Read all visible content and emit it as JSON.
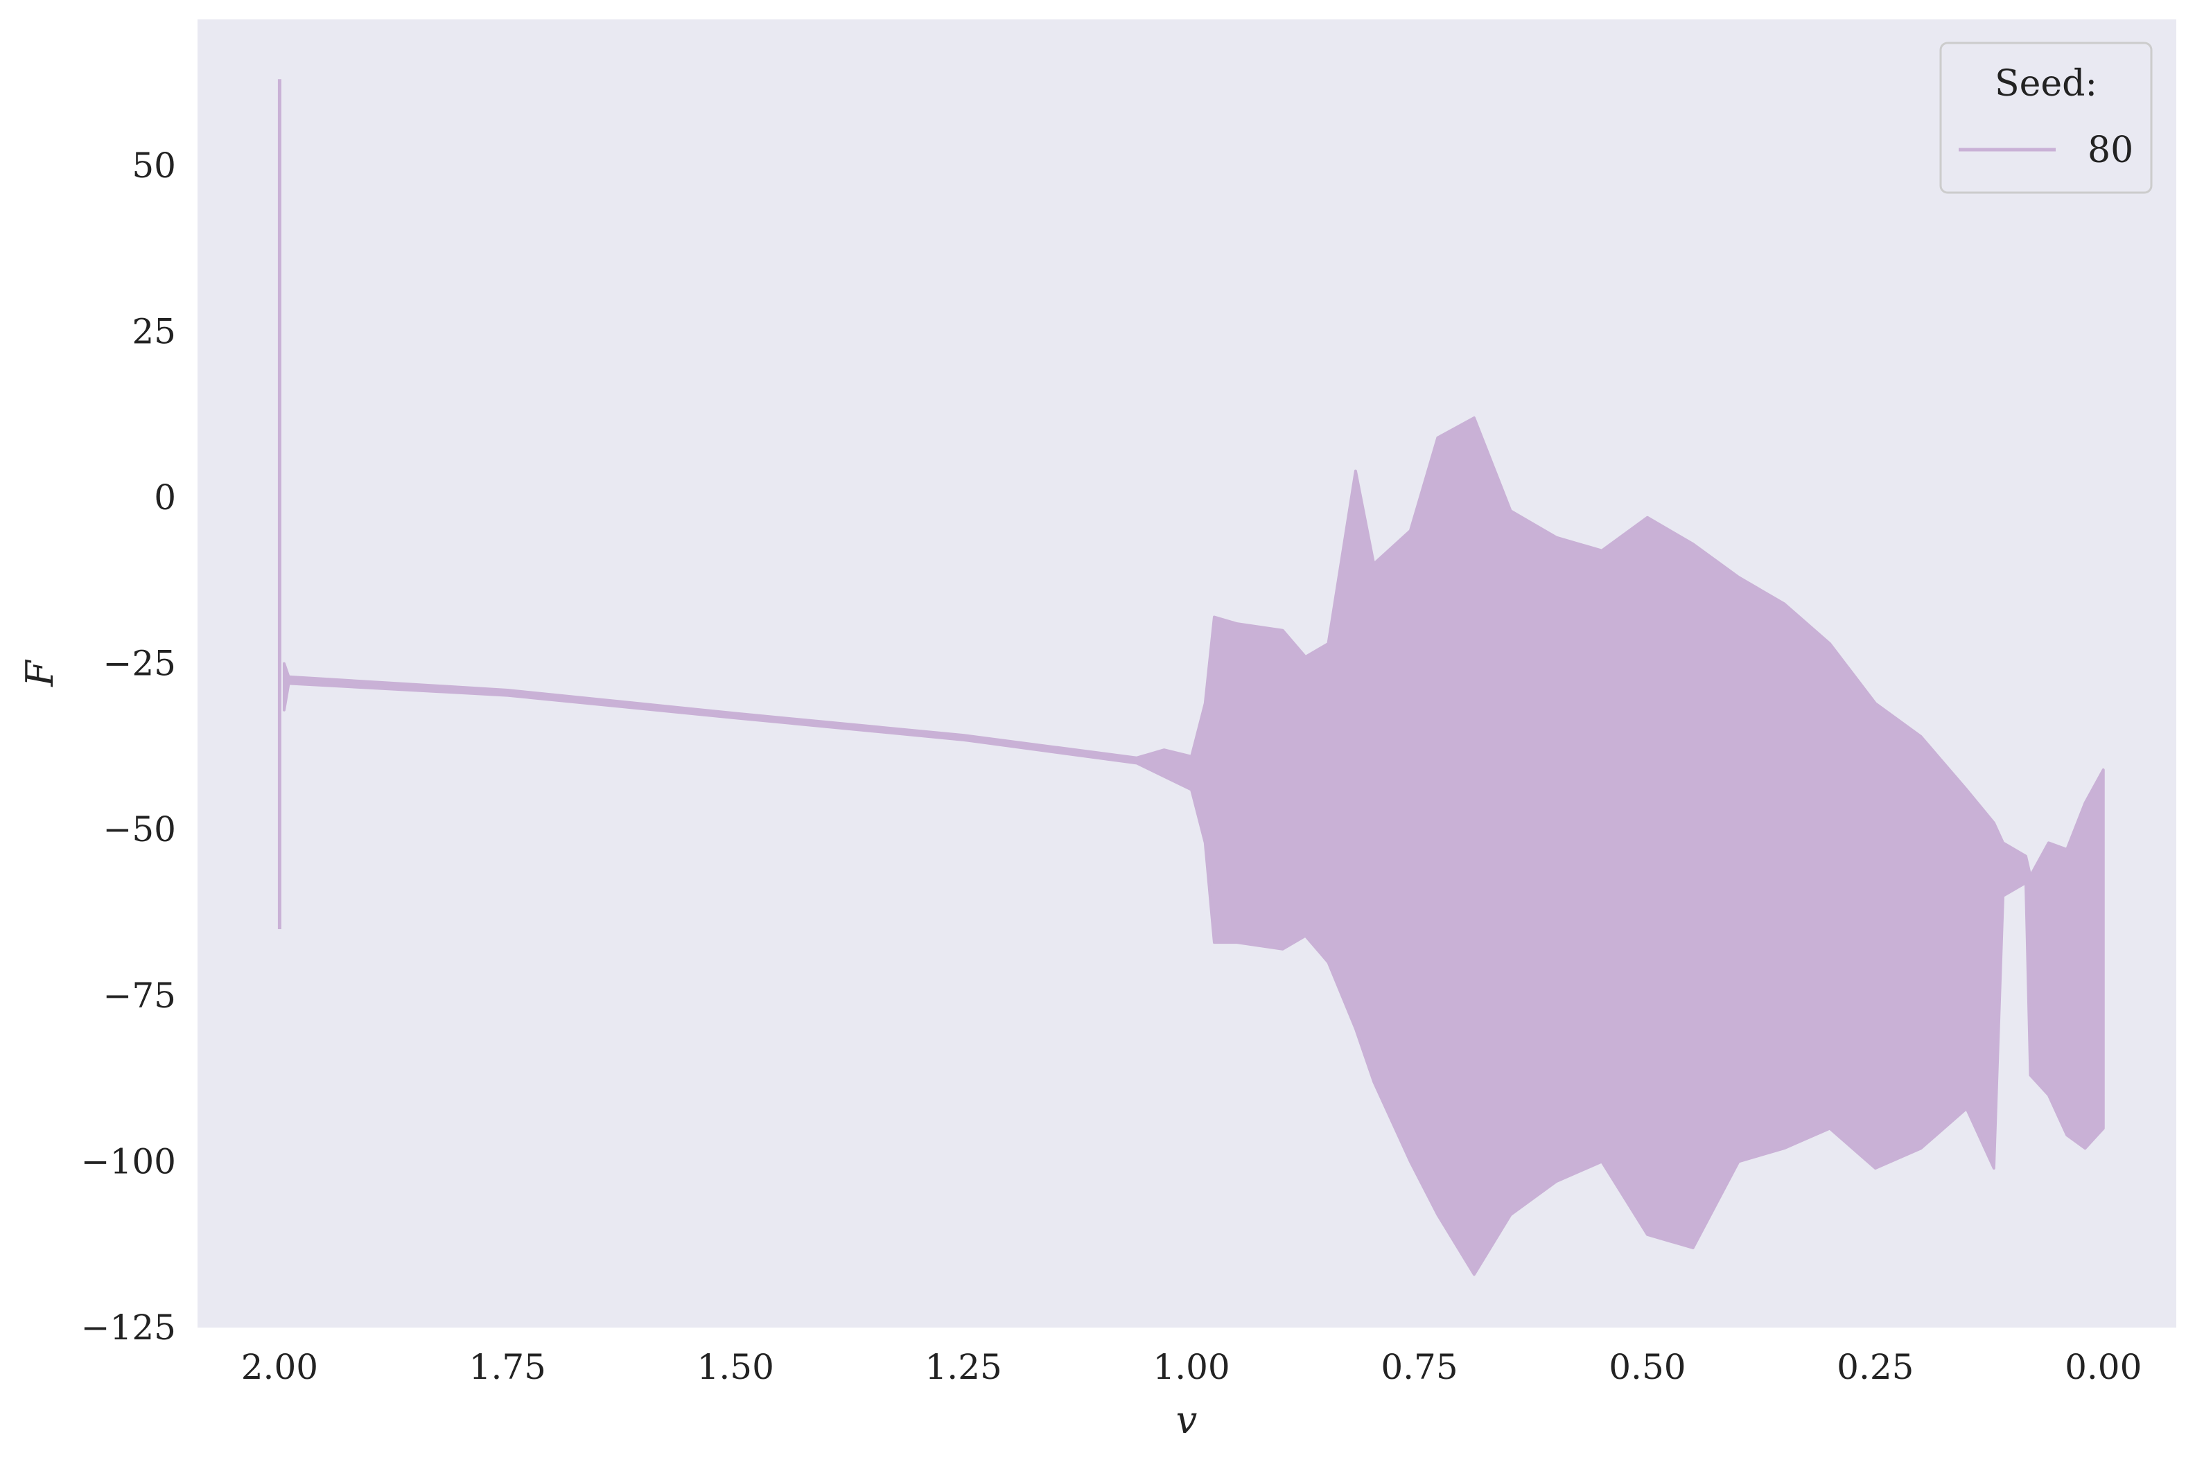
{
  "chart_data": {
    "type": "line",
    "title": "",
    "xlabel": "v",
    "ylabel": "F",
    "xlim": [
      2.09,
      -0.08
    ],
    "ylim": [
      -125,
      72
    ],
    "x_inverted": true,
    "grid": false,
    "background_color": "#e9e9f2",
    "x_ticks": [
      2.0,
      1.75,
      1.5,
      1.25,
      1.0,
      0.75,
      0.5,
      0.25,
      0.0
    ],
    "x_tick_labels": [
      "2.00",
      "1.75",
      "1.50",
      "1.25",
      "1.00",
      "0.75",
      "0.50",
      "0.25",
      "0.00"
    ],
    "y_ticks": [
      50,
      25,
      0,
      -25,
      -50,
      -75,
      -100,
      -125
    ],
    "y_tick_labels": [
      "50",
      "25",
      "0",
      "−25",
      "−50",
      "−75",
      "−100",
      "−125"
    ],
    "legend": {
      "title": "Seed:",
      "position": "top-right"
    },
    "series": [
      {
        "name": "80",
        "color": "#c9b1d6",
        "x_start": 2.0,
        "x_end": 0.0,
        "spikes": [
          {
            "x": 2.0,
            "min": -65,
            "max": 63
          }
        ],
        "envelope": [
          {
            "x": 1.995,
            "lower": -32,
            "upper": -25
          },
          {
            "x": 1.99,
            "lower": -28,
            "upper": -27
          },
          {
            "x": 1.75,
            "lower": -29.8,
            "upper": -29
          },
          {
            "x": 1.5,
            "lower": -33.2,
            "upper": -32.5
          },
          {
            "x": 1.25,
            "lower": -36.5,
            "upper": -35.8
          },
          {
            "x": 1.06,
            "lower": -40,
            "upper": -39.2
          },
          {
            "x": 1.03,
            "lower": -42,
            "upper": -38
          },
          {
            "x": 1.0,
            "lower": -44,
            "upper": -39
          },
          {
            "x": 0.985,
            "lower": -52,
            "upper": -31
          },
          {
            "x": 0.975,
            "lower": -67,
            "upper": -18
          },
          {
            "x": 0.95,
            "lower": -67,
            "upper": -19
          },
          {
            "x": 0.9,
            "lower": -68,
            "upper": -20
          },
          {
            "x": 0.875,
            "lower": -66,
            "upper": -24
          },
          {
            "x": 0.85,
            "lower": -70,
            "upper": -22
          },
          {
            "x": 0.82,
            "lower": -80,
            "upper": 4
          },
          {
            "x": 0.8,
            "lower": -88,
            "upper": -10
          },
          {
            "x": 0.76,
            "lower": -100,
            "upper": -5
          },
          {
            "x": 0.73,
            "lower": -108,
            "upper": 9
          },
          {
            "x": 0.69,
            "lower": -117,
            "upper": 12
          },
          {
            "x": 0.65,
            "lower": -108,
            "upper": -2
          },
          {
            "x": 0.6,
            "lower": -103,
            "upper": -6
          },
          {
            "x": 0.55,
            "lower": -100,
            "upper": -8
          },
          {
            "x": 0.5,
            "lower": -111,
            "upper": -3
          },
          {
            "x": 0.45,
            "lower": -113,
            "upper": -7
          },
          {
            "x": 0.4,
            "lower": -100,
            "upper": -12
          },
          {
            "x": 0.35,
            "lower": -98,
            "upper": -16
          },
          {
            "x": 0.3,
            "lower": -95,
            "upper": -22
          },
          {
            "x": 0.25,
            "lower": -101,
            "upper": -31
          },
          {
            "x": 0.2,
            "lower": -98,
            "upper": -36
          },
          {
            "x": 0.15,
            "lower": -92,
            "upper": -44
          },
          {
            "x": 0.12,
            "lower": -101,
            "upper": -49
          },
          {
            "x": 0.11,
            "lower": -60,
            "upper": -52
          },
          {
            "x": 0.085,
            "lower": -58,
            "upper": -54
          },
          {
            "x": 0.08,
            "lower": -87,
            "upper": -57
          },
          {
            "x": 0.06,
            "lower": -90,
            "upper": -52
          },
          {
            "x": 0.04,
            "lower": -96,
            "upper": -53
          },
          {
            "x": 0.02,
            "lower": -98,
            "upper": -46
          },
          {
            "x": 0.0,
            "lower": -95,
            "upper": -41
          }
        ]
      }
    ]
  }
}
